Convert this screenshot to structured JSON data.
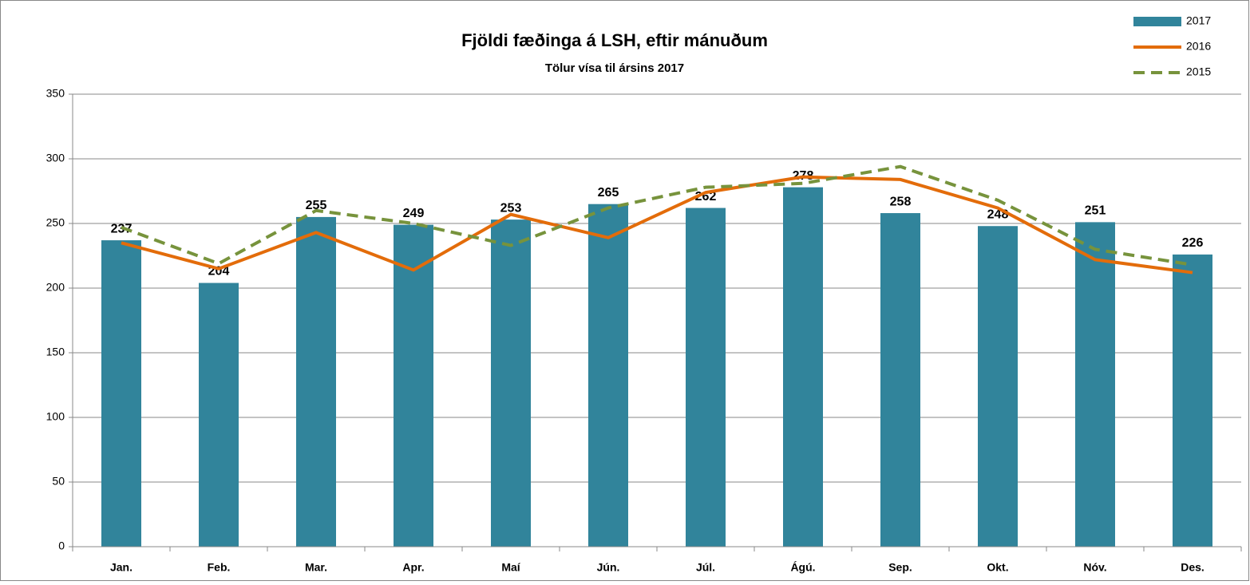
{
  "chart_data": {
    "type": "bar_line",
    "title": "Fjöldi fæðinga á LSH, eftir mánuðum",
    "subtitle": "Tölur vísa til ársins 2017",
    "categories": [
      "Jan.",
      "Feb.",
      "Mar.",
      "Apr.",
      "Maí",
      "Jún.",
      "Júl.",
      "Ágú.",
      "Sep.",
      "Okt.",
      "Nóv.",
      "Des."
    ],
    "series": [
      {
        "name": "2017",
        "kind": "bar",
        "color": "#31849b",
        "values": [
          237,
          204,
          255,
          249,
          253,
          265,
          262,
          278,
          258,
          248,
          251,
          226
        ]
      },
      {
        "name": "2016",
        "kind": "line",
        "color": "#e36c0a",
        "values": [
          235,
          215,
          243,
          214,
          257,
          239,
          274,
          286,
          284,
          262,
          222,
          212
        ]
      },
      {
        "name": "2015",
        "kind": "dashed",
        "color": "#77933c",
        "values": [
          247,
          219,
          260,
          250,
          233,
          262,
          278,
          281,
          294,
          268,
          230,
          218
        ]
      }
    ],
    "ylim": [
      0,
      350
    ],
    "yticks": [
      0,
      50,
      100,
      150,
      200,
      250,
      300,
      350
    ],
    "grid": true,
    "legend": "top-right"
  }
}
